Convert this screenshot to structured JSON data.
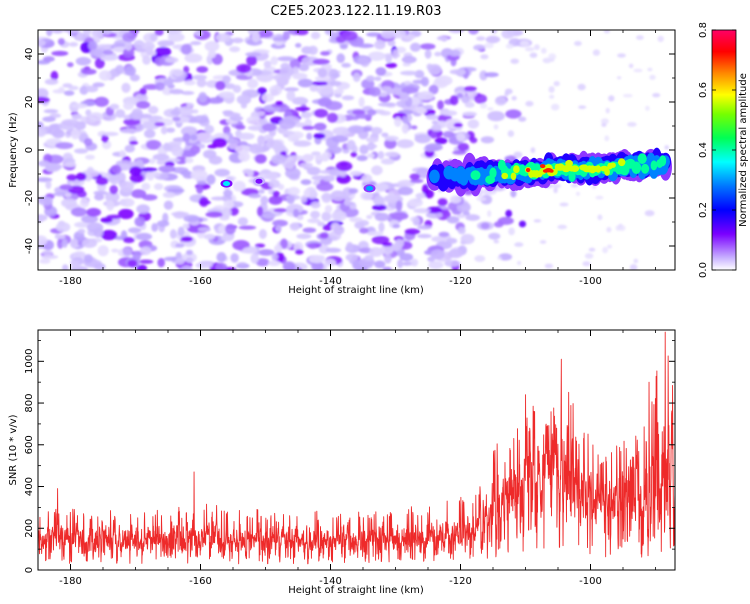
{
  "title": "C2E5.2023.122.11.19.R03",
  "colors": {
    "snr_line": "#ee2a2a",
    "axis": "#000000"
  },
  "chart_data": [
    {
      "type": "heatmap",
      "xlabel": "Height of straight line (km)",
      "ylabel": "Frequency (Hz)",
      "xlim": [
        -185,
        -87
      ],
      "ylim": [
        -50,
        50
      ],
      "x_ticks": [
        -180,
        -160,
        -140,
        -120,
        -100
      ],
      "y_ticks": [
        -40,
        -20,
        0,
        20,
        40
      ],
      "colorbar": {
        "label": "Normalized spectral amplitude",
        "range": [
          0.0,
          0.8
        ],
        "ticks": [
          0.0,
          0.2,
          0.4,
          0.6,
          0.8
        ],
        "colormap": [
          "#ffffff",
          "#b59cff",
          "#7a00ff",
          "#0000ff",
          "#0099ff",
          "#00ffff",
          "#00ff66",
          "#66ff00",
          "#ffff00",
          "#ff8800",
          "#ff0000",
          "#ff0066"
        ]
      },
      "ridge": {
        "x": [
          -124,
          -120,
          -116,
          -112,
          -108,
          -104,
          -100,
          -96,
          -92,
          -88
        ],
        "frequency": [
          -11,
          -11,
          -10,
          -9.5,
          -9,
          -8,
          -8,
          -7,
          -6,
          -5
        ],
        "amplitude": [
          0.2,
          0.25,
          0.35,
          0.5,
          0.6,
          0.65,
          0.55,
          0.45,
          0.35,
          0.3
        ]
      },
      "background_noise": {
        "x_extent": [
          -185,
          -118
        ],
        "amplitude_range": [
          0.02,
          0.15
        ]
      }
    },
    {
      "type": "line",
      "xlabel": "Height of straight line (km)",
      "ylabel": "SNR (10 * v/v)",
      "xlim": [
        -185,
        -87
      ],
      "ylim": [
        0,
        1150
      ],
      "x_ticks": [
        -180,
        -160,
        -140,
        -120,
        -100
      ],
      "y_ticks": [
        0,
        200,
        400,
        600,
        800,
        1000
      ],
      "envelope": {
        "x": [
          -185,
          -180,
          -170,
          -160,
          -150,
          -140,
          -130,
          -125,
          -120,
          -117,
          -115,
          -112,
          -110,
          -108,
          -106,
          -104,
          -102,
          -100,
          -98,
          -96,
          -94,
          -92,
          -90,
          -88,
          -87
        ],
        "mean": [
          150,
          150,
          150,
          150,
          140,
          140,
          150,
          160,
          170,
          200,
          280,
          350,
          400,
          420,
          450,
          480,
          380,
          350,
          320,
          300,
          330,
          350,
          400,
          420,
          400
        ],
        "upper": [
          280,
          300,
          280,
          320,
          290,
          290,
          300,
          320,
          350,
          420,
          600,
          650,
          750,
          850,
          800,
          1000,
          700,
          650,
          550,
          600,
          700,
          850,
          1000,
          1140,
          900
        ],
        "lower": [
          40,
          30,
          30,
          30,
          30,
          30,
          40,
          40,
          40,
          50,
          60,
          80,
          80,
          100,
          90,
          120,
          80,
          60,
          40,
          30,
          40,
          60,
          80,
          100,
          120
        ]
      },
      "peaks": [
        {
          "x": -161,
          "y": 470
        },
        {
          "x": -182,
          "y": 390
        },
        {
          "x": -110,
          "y": 840
        },
        {
          "x": -104.5,
          "y": 1010
        },
        {
          "x": -91,
          "y": 900
        },
        {
          "x": -88.5,
          "y": 1140
        }
      ]
    }
  ]
}
